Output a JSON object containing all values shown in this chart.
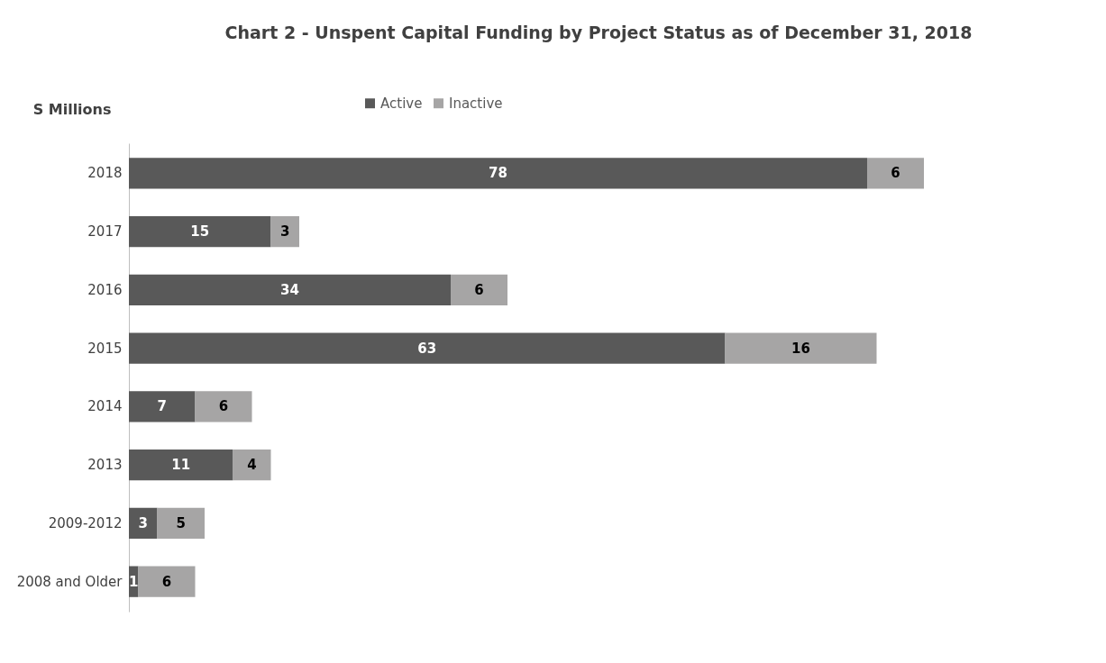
{
  "chart_data": {
    "type": "bar",
    "orientation": "horizontal",
    "stacked": true,
    "data_labels": true,
    "legend": "top",
    "grid": false,
    "title": "Chart 2 - Unspent Capital Funding by Project Status as of December 31, 2018",
    "ylabel": "S Millions",
    "categories": [
      "2018",
      "2017",
      "2016",
      "2015",
      "2014",
      "2013",
      "2009-2012",
      "2008 and Older"
    ],
    "series": [
      {
        "name": "Active",
        "color": "#595959",
        "values": [
          78,
          15,
          34,
          63,
          7,
          11,
          3,
          1
        ]
      },
      {
        "name": "Inactive",
        "color": "#a6a5a5",
        "values": [
          6,
          3,
          6,
          16,
          6,
          4,
          5,
          6
        ]
      }
    ]
  }
}
